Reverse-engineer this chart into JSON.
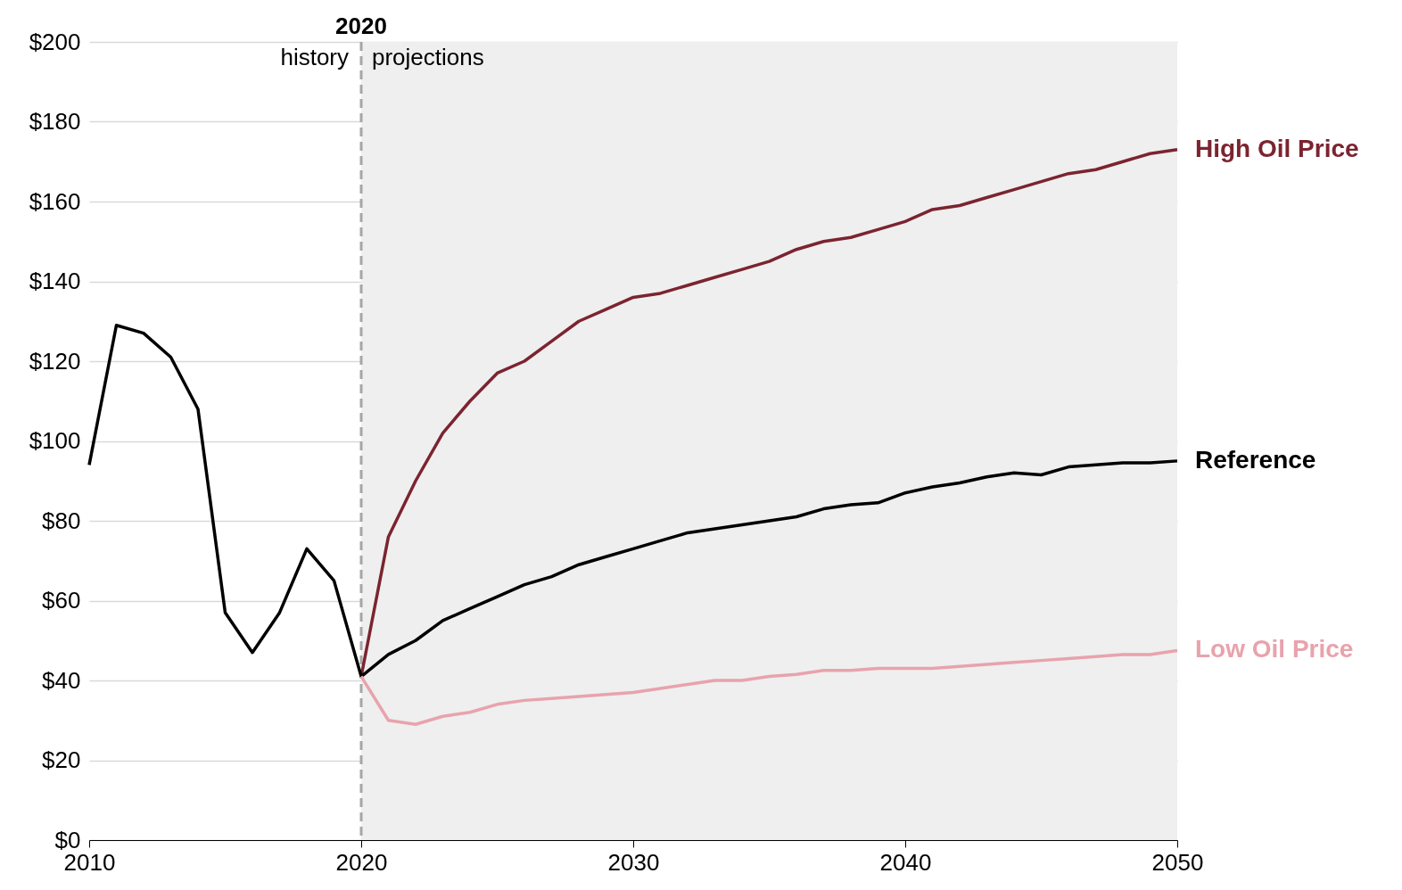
{
  "chart_data": {
    "type": "line",
    "x": [
      2010,
      2011,
      2012,
      2013,
      2014,
      2015,
      2016,
      2017,
      2018,
      2019,
      2020,
      2021,
      2022,
      2023,
      2024,
      2025,
      2026,
      2027,
      2028,
      2029,
      2030,
      2031,
      2032,
      2033,
      2034,
      2035,
      2036,
      2037,
      2038,
      2039,
      2040,
      2041,
      2042,
      2043,
      2044,
      2045,
      2046,
      2047,
      2048,
      2049,
      2050
    ],
    "series": [
      {
        "name": "High Oil Price",
        "color": "#7b2430",
        "x": [
          2020,
          2021,
          2022,
          2023,
          2024,
          2025,
          2026,
          2027,
          2028,
          2029,
          2030,
          2031,
          2032,
          2033,
          2034,
          2035,
          2036,
          2037,
          2038,
          2039,
          2040,
          2041,
          2042,
          2043,
          2044,
          2045,
          2046,
          2047,
          2048,
          2049,
          2050
        ],
        "values": [
          41,
          76,
          90,
          102,
          110,
          117,
          120,
          125,
          130,
          133,
          136,
          137,
          139,
          141,
          143,
          145,
          148,
          150,
          151,
          153,
          155,
          158,
          159,
          161,
          163,
          165,
          167,
          168,
          170,
          172,
          173
        ]
      },
      {
        "name": "Reference",
        "color": "#000000",
        "values": [
          94,
          129,
          127,
          121,
          108,
          57,
          47,
          57,
          73,
          65,
          41,
          46.5,
          50,
          55,
          58,
          61,
          64,
          66,
          69,
          71,
          73,
          75,
          77,
          78,
          79,
          80,
          81,
          83,
          84,
          84.5,
          87,
          88.5,
          89.5,
          91,
          92,
          91.5,
          93.5,
          94,
          94.5,
          94.5,
          95
        ]
      },
      {
        "name": "Low Oil Price",
        "color": "#e8a3ac",
        "x": [
          2020,
          2021,
          2022,
          2023,
          2024,
          2025,
          2026,
          2027,
          2028,
          2029,
          2030,
          2031,
          2032,
          2033,
          2034,
          2035,
          2036,
          2037,
          2038,
          2039,
          2040,
          2041,
          2042,
          2043,
          2044,
          2045,
          2046,
          2047,
          2048,
          2049,
          2050
        ],
        "values": [
          41,
          30,
          29,
          31,
          32,
          34,
          35,
          35.5,
          36,
          36.5,
          37,
          38,
          39,
          40,
          40,
          41,
          41.5,
          42.5,
          42.5,
          43,
          43,
          43,
          43.5,
          44,
          44.5,
          45,
          45.5,
          46,
          46.5,
          46.5,
          47.5
        ]
      }
    ],
    "xlim": [
      2010,
      2050
    ],
    "xticks": [
      2010,
      2020,
      2030,
      2040,
      2050
    ],
    "ylim": [
      0,
      200
    ],
    "yticks": [
      {
        "value": 0,
        "label": "$0"
      },
      {
        "value": 20,
        "label": "$20"
      },
      {
        "value": 40,
        "label": "$40"
      },
      {
        "value": 60,
        "label": "$60"
      },
      {
        "value": 80,
        "label": "$80"
      },
      {
        "value": 100,
        "label": "$100"
      },
      {
        "value": 120,
        "label": "$120"
      },
      {
        "value": 140,
        "label": "$140"
      },
      {
        "value": 160,
        "label": "$160"
      },
      {
        "value": 180,
        "label": "$180"
      },
      {
        "value": 200,
        "label": "$200"
      }
    ],
    "grid": "y",
    "legend": false,
    "line_style": "solid",
    "marker": "none",
    "bands": [
      {
        "axis": "x",
        "from": 2020,
        "to": 2050,
        "color": "#efefef"
      }
    ],
    "ref_lines": [
      {
        "axis": "x",
        "value": 2020,
        "label": "2020",
        "color": "#a6a6a6",
        "line_style": "dashed"
      }
    ],
    "annotations": [
      {
        "text": "history",
        "x": 2020,
        "y": 196
      },
      {
        "text": "projections",
        "x": 2020,
        "y": 196
      }
    ]
  }
}
